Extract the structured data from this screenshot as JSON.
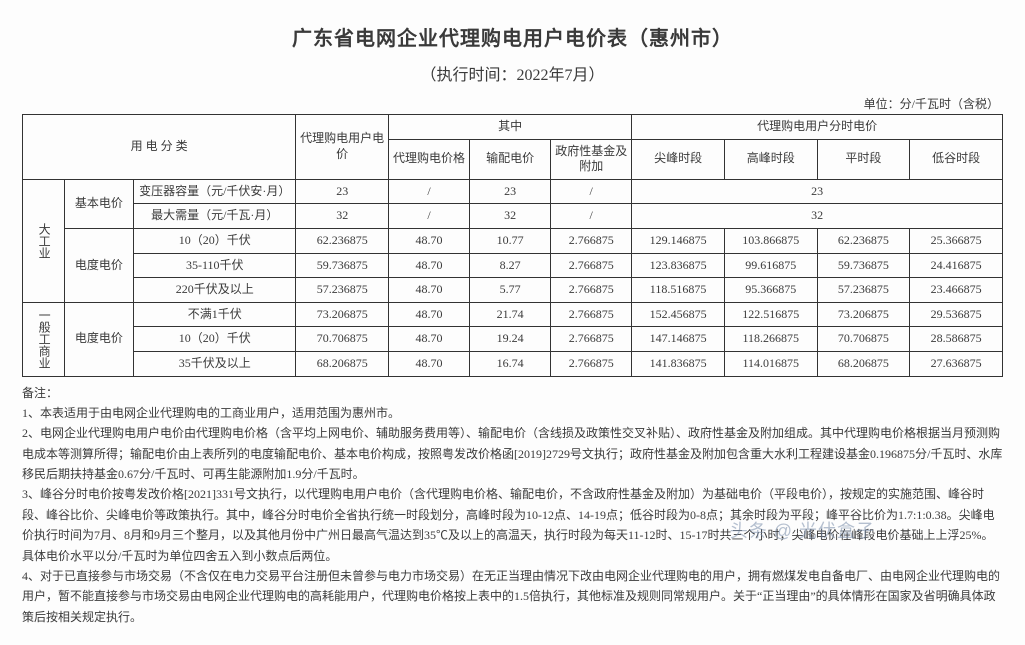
{
  "title": "广东省电网企业代理购电用户电价表（惠州市）",
  "subtitle": "（执行时间：2022年7月）",
  "unit_line": "单位：分/千瓦时（含税）",
  "headers": {
    "category": "用 电 分 类",
    "proxy_price": "代理购电用户电价",
    "of_which": "其中",
    "tou_group": "代理购电用户分时电价",
    "sub_proxy": "代理购电价格",
    "sub_trans": "输配电价",
    "sub_gov": "政府性基金及附加",
    "tou_peak_sharp": "尖峰时段",
    "tou_peak": "高峰时段",
    "tou_flat": "平时段",
    "tou_valley": "低谷时段"
  },
  "cat_labels": {
    "large_ind": "大工业",
    "gen_comm": "一般工商业",
    "basic_price": "基本电价",
    "energy_price": "电度电价",
    "transformer": "变压器容量（元/千伏安·月）",
    "max_demand": "最大需量（元/千瓦·月）",
    "v10_20": "10（20）千伏",
    "v35_110": "35-110千伏",
    "v220_up": "220千伏及以上",
    "below_1": "不满1千伏",
    "v35_up": "35千伏及以上"
  },
  "rows": {
    "transformer": {
      "main": "23",
      "s1": "/",
      "s2": "23",
      "s3": "/",
      "right_merged": "23"
    },
    "max_demand": {
      "main": "32",
      "s1": "/",
      "s2": "32",
      "s3": "/",
      "right_merged": "32"
    },
    "li_10": {
      "main": "62.236875",
      "s1": "48.70",
      "s2": "10.77",
      "s3": "2.766875",
      "t1": "129.146875",
      "t2": "103.866875",
      "t3": "62.236875",
      "t4": "25.366875"
    },
    "li_35": {
      "main": "59.736875",
      "s1": "48.70",
      "s2": "8.27",
      "s3": "2.766875",
      "t1": "123.836875",
      "t2": "99.616875",
      "t3": "59.736875",
      "t4": "24.416875"
    },
    "li_220": {
      "main": "57.236875",
      "s1": "48.70",
      "s2": "5.77",
      "s3": "2.766875",
      "t1": "118.516875",
      "t2": "95.366875",
      "t3": "57.236875",
      "t4": "23.466875"
    },
    "gc_b1": {
      "main": "73.206875",
      "s1": "48.70",
      "s2": "21.74",
      "s3": "2.766875",
      "t1": "152.456875",
      "t2": "122.516875",
      "t3": "73.206875",
      "t4": "29.536875"
    },
    "gc_10": {
      "main": "70.706875",
      "s1": "48.70",
      "s2": "19.24",
      "s3": "2.766875",
      "t1": "147.146875",
      "t2": "118.266875",
      "t3": "70.706875",
      "t4": "28.586875"
    },
    "gc_35": {
      "main": "68.206875",
      "s1": "48.70",
      "s2": "16.74",
      "s3": "2.766875",
      "t1": "141.836875",
      "t2": "114.016875",
      "t3": "68.206875",
      "t4": "27.636875"
    }
  },
  "notes": {
    "hdr": "备注：",
    "n1": "1、本表适用于由电网企业代理购电的工商业用户，适用范围为惠州市。",
    "n2": "2、电网企业代理购电用户电价由代理购电价格（含平均上网电价、辅助服务费用等）、输配电价（含线损及政策性交叉补贴）、政府性基金及附加组成。其中代理购电价格根据当月预测购电成本等测算所得；输配电价由上表所列的电度输配电价、基本电价构成，按照粤发改价格函[2019]2729号文执行；政府性基金及附加包含重大水利工程建设基金0.196875分/千瓦时、水库移民后期扶持基金0.67分/千瓦时、可再生能源附加1.9分/千瓦时。",
    "n3": "3、峰谷分时电价按粤发改价格[2021]331号文执行，以代理购电用户电价（含代理购电价格、输配电价，不含政府性基金及附加）为基础电价（平段电价），按规定的实施范围、峰谷时段、峰谷比价、尖峰电价等政策执行。其中，峰谷分时电价全省执行统一时段划分，高峰时段为10-12点、14-19点；低谷时段为0-8点；其余时段为平段；峰平谷比价为1.7:1:0.38。尖峰电价执行时间为7月、8月和9月三个整月，以及其他月份中广州日最高气温达到35℃及以上的高温天，执行时段为每天11-12时、15-17时共三个小时，尖峰电价在峰段电价基础上上浮25%。具体电价水平以分/千瓦时为单位四舍五入到小数点后两位。",
    "n4": "4、对于已直接参与市场交易（不含仅在电力交易平台注册但未曾参与电力市场交易）在无正当理由情况下改由电网企业代理购电的用户，拥有燃煤发电自备电厂、由电网企业代理购电的用户，暂不能直接参与市场交易由电网企业代理购电的高耗能用户，代理购电价格按上表中的1.5倍执行，其他标准及规则同常规用户。关于“正当理由”的具体情形在国家及省明确具体政策后按相关规定执行。"
  },
  "watermark": "头条 @ 光伏盒子"
}
